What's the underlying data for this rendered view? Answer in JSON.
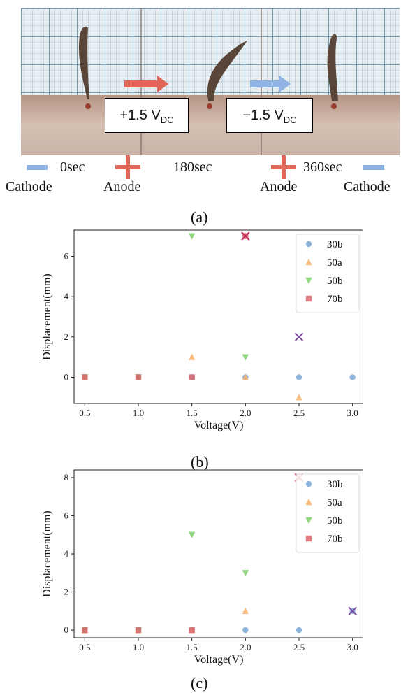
{
  "panel_a": {
    "label": "(a)",
    "voltage_box_1": {
      "sign": "+1.5 V",
      "sub": "DC"
    },
    "voltage_box_2": {
      "sign": "−1.5 V",
      "sub": "DC"
    },
    "times": [
      "0sec",
      "180sec",
      "360sec"
    ],
    "electrodes": [
      "Cathode",
      "Anode",
      "Anode",
      "Cathode"
    ],
    "colors": {
      "positive_arrow": "#e0675a",
      "negative_arrow": "#8fb4e3",
      "anode": "#e0675a",
      "cathode": "#8fb4e3"
    }
  },
  "panel_b_label": "(b)",
  "panel_c_label": "(c)",
  "chart_data": [
    {
      "type": "scatter",
      "xlabel": "Voltage(V)",
      "ylabel": "Displacement(mm)",
      "xlim": [
        0.4,
        3.1
      ],
      "ylim": [
        -1.3,
        7.3
      ],
      "xticks": [
        "0.5",
        "1.0",
        "1.5",
        "2.0",
        "2.5",
        "3.0"
      ],
      "yticks": [
        "0",
        "2",
        "4",
        "6"
      ],
      "legend_placement": "top-right",
      "series": [
        {
          "name": "30b",
          "marker": "circle",
          "color": "#7aa7d6",
          "points": [
            [
              0.5,
              0
            ],
            [
              1.0,
              0
            ],
            [
              1.5,
              0
            ],
            [
              2.0,
              0
            ],
            [
              2.5,
              0
            ],
            [
              3.0,
              0
            ]
          ]
        },
        {
          "name": "50a",
          "marker": "triangle-up",
          "color": "#f7b26b",
          "points": [
            [
              0.5,
              0
            ],
            [
              1.0,
              0
            ],
            [
              1.5,
              1
            ],
            [
              2.0,
              0
            ],
            [
              2.5,
              -1
            ]
          ]
        },
        {
          "name": "50b",
          "marker": "triangle-down",
          "color": "#7fcf6f",
          "points": [
            [
              0.5,
              0
            ],
            [
              1.0,
              0
            ],
            [
              1.5,
              7
            ],
            [
              2.0,
              1
            ]
          ]
        },
        {
          "name": "70b",
          "marker": "square",
          "color": "#d9656b",
          "points": [
            [
              0.5,
              0
            ],
            [
              1.0,
              0
            ],
            [
              1.5,
              0
            ],
            [
              2.0,
              7
            ]
          ]
        }
      ],
      "x_markers": [
        {
          "x": 2.0,
          "y": 7,
          "color": "#c0285a"
        },
        {
          "x": 2.5,
          "y": 2,
          "color": "#7a4a9e"
        }
      ]
    },
    {
      "type": "scatter",
      "xlabel": "Voltage(V)",
      "ylabel": "Displacement(mm)",
      "xlim": [
        0.4,
        3.1
      ],
      "ylim": [
        -0.4,
        8.4
      ],
      "xticks": [
        "0.5",
        "1.0",
        "1.5",
        "2.0",
        "2.5",
        "3.0"
      ],
      "yticks": [
        "0",
        "2",
        "4",
        "6",
        "8"
      ],
      "legend_placement": "top-right",
      "series": [
        {
          "name": "30b",
          "marker": "circle",
          "color": "#7aa7d6",
          "points": [
            [
              0.5,
              0
            ],
            [
              1.0,
              0
            ],
            [
              1.5,
              0
            ],
            [
              2.0,
              0
            ],
            [
              2.5,
              0
            ],
            [
              3.0,
              1
            ]
          ]
        },
        {
          "name": "50a",
          "marker": "triangle-up",
          "color": "#f7b26b",
          "points": [
            [
              0.5,
              0
            ],
            [
              1.0,
              0
            ],
            [
              1.5,
              0
            ],
            [
              2.0,
              1
            ],
            [
              2.5,
              8
            ]
          ]
        },
        {
          "name": "50b",
          "marker": "triangle-down",
          "color": "#7fcf6f",
          "points": [
            [
              0.5,
              0
            ],
            [
              1.0,
              0
            ],
            [
              1.5,
              5
            ],
            [
              2.0,
              3
            ]
          ]
        },
        {
          "name": "70b",
          "marker": "square",
          "color": "#d9656b",
          "points": [
            [
              0.5,
              0
            ],
            [
              1.0,
              0
            ],
            [
              1.5,
              0
            ]
          ]
        }
      ],
      "x_markers": [
        {
          "x": 2.5,
          "y": 8,
          "color": "#c0285a"
        },
        {
          "x": 3.0,
          "y": 1,
          "color": "#7a4a9e"
        }
      ]
    }
  ]
}
